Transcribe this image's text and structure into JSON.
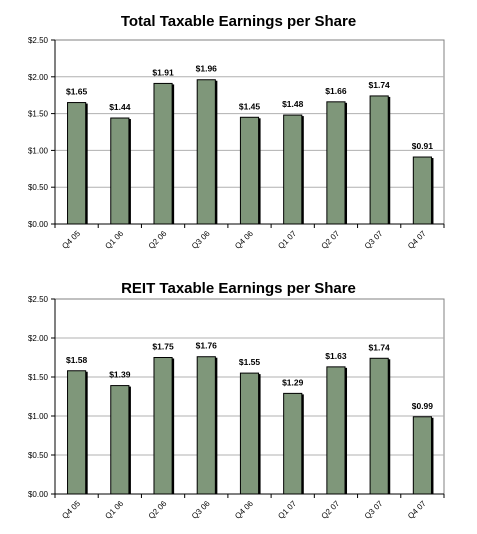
{
  "chart_data": [
    {
      "type": "bar",
      "title": "Total Taxable Earnings per Share",
      "categories": [
        "Q4 05",
        "Q1 06",
        "Q2 06",
        "Q3 06",
        "Q4 06",
        "Q1 07",
        "Q2 07",
        "Q3 07",
        "Q4 07"
      ],
      "values": [
        1.65,
        1.44,
        1.91,
        1.96,
        1.45,
        1.48,
        1.66,
        1.74,
        0.91
      ],
      "data_labels": [
        "$1.65",
        "$1.44",
        "$1.91",
        "$1.96",
        "$1.45",
        "$1.48",
        "$1.66",
        "$1.74",
        "$0.91"
      ],
      "y_ticks": [
        0,
        0.5,
        1.0,
        1.5,
        2.0,
        2.5
      ],
      "y_tick_labels": [
        "$0.00",
        "$0.50",
        "$1.00",
        "$1.50",
        "$2.00",
        "$2.50"
      ],
      "ylim": [
        0,
        2.5
      ],
      "xlabel": "",
      "ylabel": "",
      "grid": true,
      "legend": "none",
      "bar_color": "#7f977a"
    },
    {
      "type": "bar",
      "title": "REIT Taxable Earnings per Share",
      "categories": [
        "Q4 05",
        "Q1 06",
        "Q2 06",
        "Q3 06",
        "Q4 06",
        "Q1 07",
        "Q2 07",
        "Q3 07",
        "Q4 07"
      ],
      "values": [
        1.58,
        1.39,
        1.75,
        1.76,
        1.55,
        1.29,
        1.63,
        1.74,
        0.99
      ],
      "data_labels": [
        "$1.58",
        "$1.39",
        "$1.75",
        "$1.76",
        "$1.55",
        "$1.29",
        "$1.63",
        "$1.74",
        "$0.99"
      ],
      "y_ticks": [
        0,
        0.5,
        1.0,
        1.5,
        2.0,
        2.5
      ],
      "y_tick_labels": [
        "$0.00",
        "$0.50",
        "$1.00",
        "$1.50",
        "$2.00",
        "$2.50"
      ],
      "ylim": [
        0,
        2.5
      ],
      "xlabel": "",
      "ylabel": "",
      "grid": true,
      "legend": "none",
      "bar_color": "#7f977a"
    }
  ]
}
